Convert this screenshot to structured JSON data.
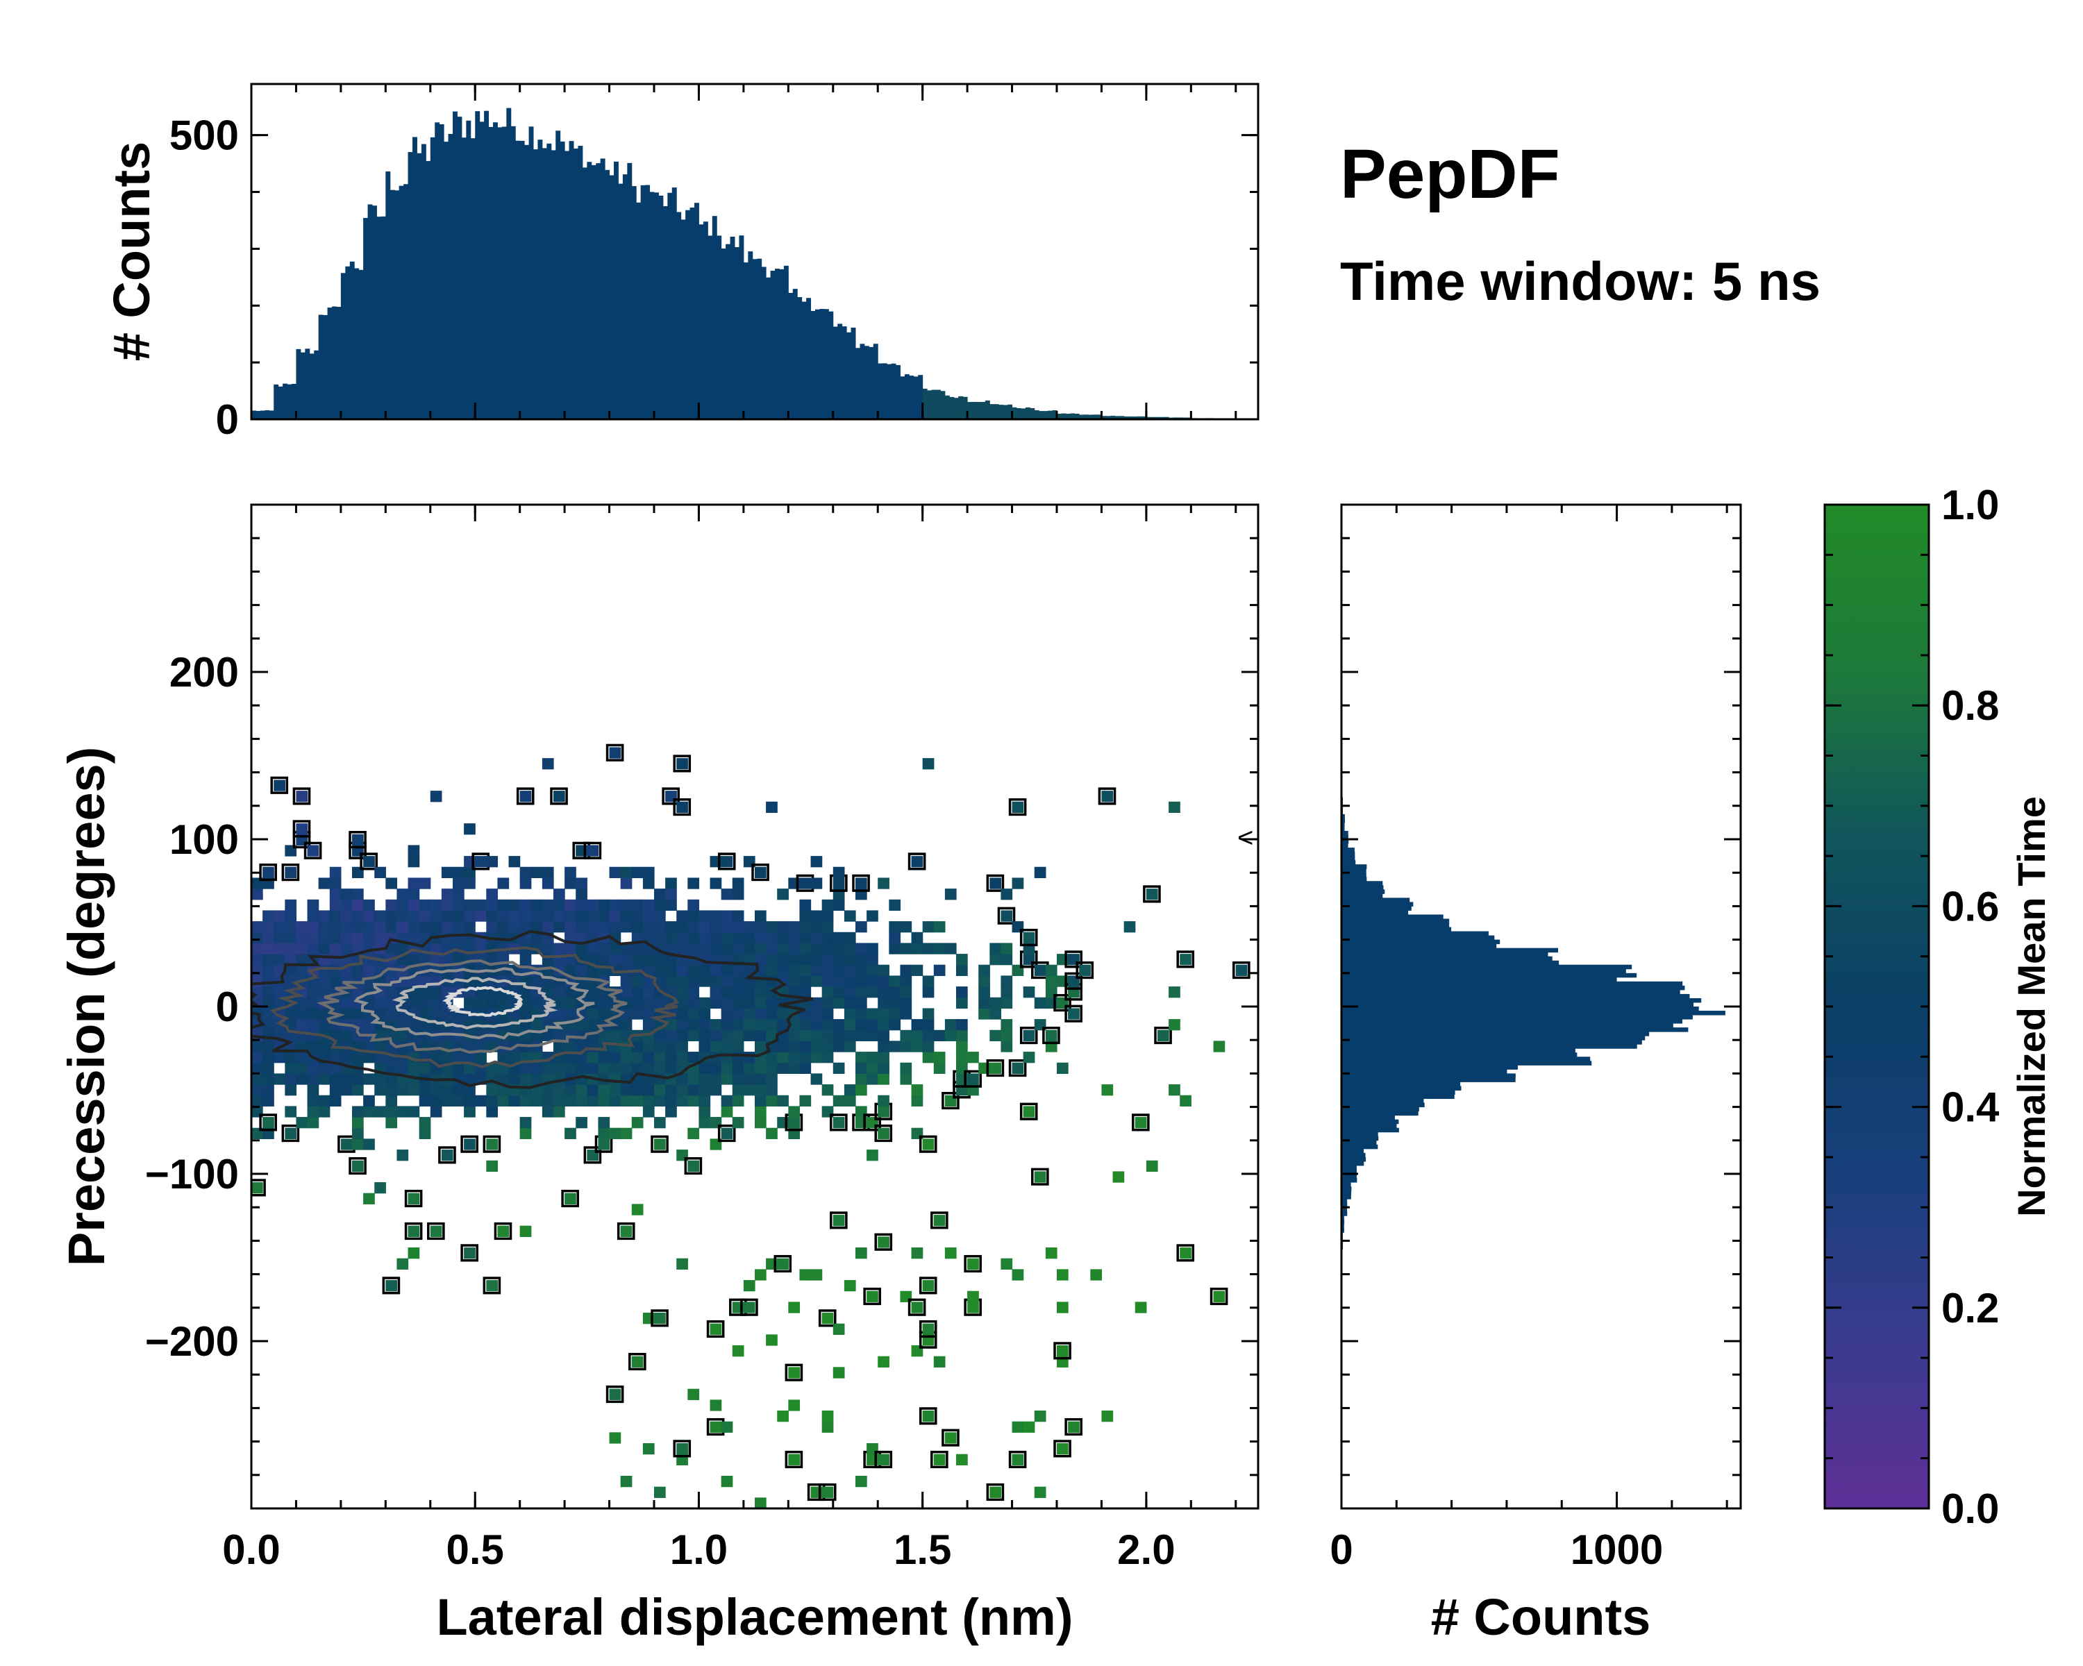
{
  "chart_data": [
    {
      "id": "top_marginal",
      "type": "bar",
      "title": "",
      "xlabel": "",
      "ylabel": "# Counts",
      "xlim": [
        0.0,
        2.25
      ],
      "ylim": [
        0,
        590
      ],
      "yticks": [
        0,
        500
      ],
      "ytick_labels": [
        "0",
        "500"
      ],
      "x": [
        0.0,
        0.05,
        0.1,
        0.15,
        0.2,
        0.25,
        0.3,
        0.35,
        0.4,
        0.45,
        0.5,
        0.55,
        0.6,
        0.65,
        0.7,
        0.75,
        0.8,
        0.85,
        0.9,
        0.95,
        1.0,
        1.05,
        1.1,
        1.15,
        1.2,
        1.25,
        1.3,
        1.35,
        1.4,
        1.45,
        1.5,
        1.55,
        1.6,
        1.65,
        1.7,
        1.75,
        1.8,
        1.85,
        1.9,
        1.95,
        2.0,
        2.05,
        2.1
      ],
      "values": [
        15,
        60,
        120,
        190,
        270,
        360,
        420,
        470,
        500,
        520,
        530,
        520,
        505,
        490,
        470,
        450,
        430,
        405,
        385,
        365,
        340,
        310,
        285,
        255,
        220,
        190,
        160,
        130,
        100,
        75,
        52,
        40,
        32,
        26,
        20,
        15,
        10,
        8,
        6,
        5,
        4,
        3,
        2
      ],
      "color": "#073d6b"
    },
    {
      "id": "right_marginal",
      "type": "bar",
      "orientation": "horizontal",
      "xlabel": "# Counts",
      "ylabel": "",
      "xlim": [
        0,
        1450
      ],
      "xticks": [
        0,
        1000
      ],
      "xtick_labels": [
        "0",
        "1000"
      ],
      "y": [
        -140,
        -130,
        -120,
        -110,
        -100,
        -90,
        -80,
        -70,
        -60,
        -50,
        -40,
        -30,
        -20,
        -10,
        0,
        10,
        20,
        30,
        40,
        50,
        60,
        70,
        80,
        90,
        100,
        110,
        120
      ],
      "values": [
        5,
        10,
        20,
        35,
        55,
        85,
        130,
        200,
        290,
        420,
        620,
        880,
        1120,
        1260,
        1340,
        1230,
        1040,
        780,
        560,
        380,
        250,
        150,
        90,
        50,
        25,
        12,
        5
      ],
      "color": "#073d6b"
    },
    {
      "id": "main_2d",
      "type": "heatmap",
      "title": "",
      "xlabel": "Lateral displacement (nm)",
      "ylabel": "Precession (degrees)",
      "xlim": [
        0.0,
        2.25
      ],
      "ylim": [
        -300,
        300
      ],
      "xticks": [
        0.0,
        0.5,
        1.0,
        1.5,
        2.0
      ],
      "xtick_labels": [
        "0.0",
        "0.5",
        "1.0",
        "1.5",
        "2.0"
      ],
      "yticks": [
        -200,
        -100,
        0,
        100,
        200
      ],
      "ytick_labels": [
        "−200",
        "−100",
        "0",
        "100",
        "200"
      ],
      "bin_width_x": 0.025,
      "bin_width_y": 6.5,
      "color_by": "Normalized Mean Time",
      "density_center": [
        0.55,
        0
      ],
      "contours": [
        {
          "level": 1,
          "color": "#222222",
          "cx": 0.6,
          "cy": -2,
          "rx": 0.62,
          "ry": 44
        },
        {
          "level": 2,
          "color": "#4d4d4d",
          "cx": 0.5,
          "cy": 0,
          "rx": 0.43,
          "ry": 34
        },
        {
          "level": 3,
          "color": "#6f6f6f",
          "cx": 0.5,
          "cy": 0,
          "rx": 0.33,
          "ry": 26
        },
        {
          "level": 4,
          "color": "#8f8f8f",
          "cx": 0.5,
          "cy": 2,
          "rx": 0.25,
          "ry": 20
        },
        {
          "level": 5,
          "color": "#b5b5b5",
          "cx": 0.5,
          "cy": 2,
          "rx": 0.17,
          "ry": 14
        },
        {
          "level": 6,
          "color": "#dadada",
          "cx": 0.52,
          "cy": 3,
          "rx": 0.08,
          "ry": 8
        }
      ],
      "annotation": "<"
    },
    {
      "id": "colorbar",
      "type": "colorbar",
      "label": "Normalized Mean Time",
      "range": [
        0.0,
        1.0
      ],
      "ticks": [
        0.0,
        0.2,
        0.4,
        0.6,
        0.8,
        1.0
      ],
      "tick_labels": [
        "0.0",
        "0.2",
        "0.4",
        "0.6",
        "0.8",
        "1.0"
      ],
      "colors": [
        "#5e2f96",
        "#3a3b8f",
        "#183f7c",
        "#0b3f66",
        "#11555c",
        "#1d7a3a",
        "#228a28"
      ]
    }
  ],
  "annotations": {
    "title": "PepDF",
    "subtitle": "Time window: 5 ns"
  }
}
